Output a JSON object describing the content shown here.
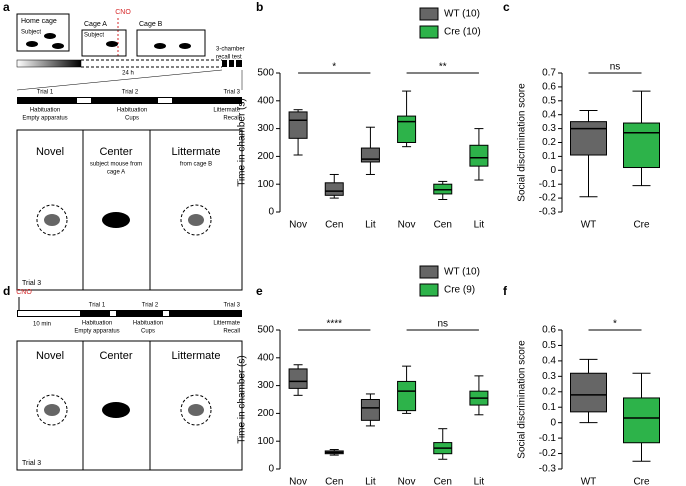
{
  "chart_data": [
    {
      "type": "box",
      "label": "b",
      "y_label": "Time in chamber (s)",
      "categories": [
        "Nov",
        "Cen",
        "Lit"
      ],
      "ylim": [
        0,
        500
      ],
      "yticks": [
        0,
        100,
        200,
        300,
        400,
        500
      ],
      "series": [
        {
          "name": "WT (10)",
          "color": "#666666",
          "boxes": [
            {
              "min": 205,
              "q1": 265,
              "median": 330,
              "q3": 360,
              "max": 368
            },
            {
              "min": 50,
              "q1": 60,
              "median": 75,
              "q3": 105,
              "max": 135
            },
            {
              "min": 135,
              "q1": 180,
              "median": 190,
              "q3": 230,
              "max": 305
            }
          ],
          "significance": "*"
        },
        {
          "name": "Cre (10)",
          "color": "#2db34a",
          "boxes": [
            {
              "min": 235,
              "q1": 250,
              "median": 325,
              "q3": 345,
              "max": 435
            },
            {
              "min": 45,
              "q1": 65,
              "median": 80,
              "q3": 100,
              "max": 110
            },
            {
              "min": 115,
              "q1": 165,
              "median": 195,
              "q3": 240,
              "max": 300
            }
          ],
          "significance": "**"
        }
      ]
    },
    {
      "type": "box",
      "label": "c",
      "y_label": "Social discrimination score",
      "categories": [
        "WT",
        "Cre"
      ],
      "colors": [
        "#666666",
        "#2db34a"
      ],
      "ylim": [
        -0.3,
        0.7
      ],
      "yticks": [
        -0.3,
        -0.2,
        -0.1,
        0,
        0.1,
        0.2,
        0.3,
        0.4,
        0.5,
        0.6,
        0.7
      ],
      "boxes": [
        {
          "min": -0.19,
          "q1": 0.11,
          "median": 0.3,
          "q3": 0.35,
          "max": 0.43
        },
        {
          "min": -0.11,
          "q1": 0.02,
          "median": 0.27,
          "q3": 0.34,
          "max": 0.57
        }
      ],
      "significance": "ns"
    },
    {
      "type": "box",
      "label": "e",
      "y_label": "Time in chamber (s)",
      "categories": [
        "Nov",
        "Cen",
        "Lit"
      ],
      "ylim": [
        0,
        500
      ],
      "yticks": [
        0,
        100,
        200,
        300,
        400,
        500
      ],
      "series": [
        {
          "name": "WT (10)",
          "color": "#666666",
          "boxes": [
            {
              "min": 265,
              "q1": 290,
              "median": 315,
              "q3": 360,
              "max": 375
            },
            {
              "min": 50,
              "q1": 55,
              "median": 60,
              "q3": 65,
              "max": 70
            },
            {
              "min": 155,
              "q1": 175,
              "median": 220,
              "q3": 250,
              "max": 270
            }
          ],
          "significance": "****"
        },
        {
          "name": "Cre (9)",
          "color": "#2db34a",
          "boxes": [
            {
              "min": 200,
              "q1": 210,
              "median": 280,
              "q3": 315,
              "max": 370
            },
            {
              "min": 35,
              "q1": 55,
              "median": 75,
              "q3": 95,
              "max": 145
            },
            {
              "min": 195,
              "q1": 230,
              "median": 255,
              "q3": 280,
              "max": 335
            }
          ],
          "significance": "ns"
        }
      ]
    },
    {
      "type": "box",
      "label": "f",
      "y_label": "Social discrimination score",
      "categories": [
        "WT",
        "Cre"
      ],
      "colors": [
        "#666666",
        "#2db34a"
      ],
      "ylim": [
        -0.3,
        0.6
      ],
      "yticks": [
        -0.3,
        -0.2,
        -0.1,
        0,
        0.1,
        0.2,
        0.3,
        0.4,
        0.5,
        0.6
      ],
      "boxes": [
        {
          "min": 0,
          "q1": 0.07,
          "median": 0.18,
          "q3": 0.32,
          "max": 0.41
        },
        {
          "min": -0.25,
          "q1": -0.13,
          "median": 0.03,
          "q3": 0.16,
          "max": 0.32
        }
      ],
      "significance": "*"
    }
  ],
  "diagram_a": {
    "label": "a",
    "home_cage": "Home cage",
    "subject": "Subject",
    "cno": "CNO",
    "cage_a": "Cage A",
    "subject_a": "Subject",
    "cage_b": "Cage B",
    "recall_test": [
      "3-chamber",
      "recall test"
    ],
    "duration": "24 h",
    "trials": [
      "Trial 1",
      "Trial 2",
      "Trial 3"
    ],
    "phases": [
      [
        "Habituation",
        "Empty apparatus"
      ],
      [
        "Habituation",
        "Cups"
      ],
      [
        "Littermate",
        "Recall"
      ]
    ],
    "chambers": [
      [
        "Novel"
      ],
      [
        "Center",
        "subject mouse from",
        "cage A"
      ],
      [
        "Littermate",
        "from cage B"
      ]
    ],
    "trial_note": "Trial 3"
  },
  "diagram_d": {
    "label": "d",
    "cno": "CNO",
    "wait": "10 min",
    "trials": [
      "Trial 1",
      "Trial 2",
      "Trial 3"
    ],
    "phases": [
      [
        "Habituation",
        "Empty apparatus"
      ],
      [
        "Habituation",
        "Cups"
      ],
      [
        "Littermate",
        "Recall"
      ]
    ],
    "chambers": [
      "Novel",
      "Center",
      "Littermate"
    ],
    "trial_note": "Trial 3"
  }
}
